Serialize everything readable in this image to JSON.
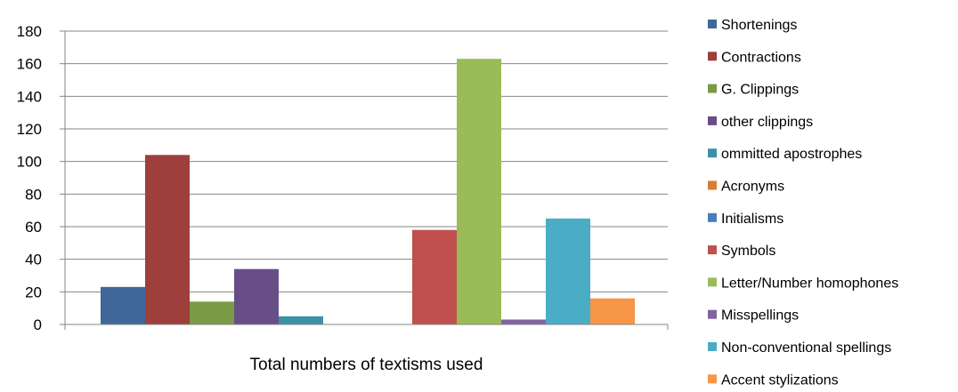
{
  "chart_data": {
    "type": "bar",
    "title": "",
    "xlabel": "Total numbers of textisms used",
    "ylabel": "",
    "ylim": [
      0,
      180
    ],
    "yticks": [
      0,
      20,
      40,
      60,
      80,
      100,
      120,
      140,
      160,
      180
    ],
    "grid": true,
    "legend_position": "right",
    "series": [
      {
        "name": "Shortenings",
        "value": 23,
        "color": "#3F679A"
      },
      {
        "name": "Contractions",
        "value": 104,
        "color": "#9E3F3C"
      },
      {
        "name": "G. Clippings",
        "value": 14,
        "color": "#7B9A45"
      },
      {
        "name": "other clippings",
        "value": 34,
        "color": "#674E87"
      },
      {
        "name": "ommitted apostrophes",
        "value": 5,
        "color": "#3A91A8"
      },
      {
        "name": "Acronyms",
        "value": 0,
        "color": "#D87D32"
      },
      {
        "name": "Initialisms",
        "value": 0,
        "color": "#4A7EBB"
      },
      {
        "name": "Symbols",
        "value": 58,
        "color": "#C0504D"
      },
      {
        "name": "Letter/Number homophones",
        "value": 163,
        "color": "#9BBB59"
      },
      {
        "name": "Misspellings",
        "value": 3,
        "color": "#8064A2"
      },
      {
        "name": "Non-conventional spellings",
        "value": 65,
        "color": "#4BACC6"
      },
      {
        "name": "Accent stylizations",
        "value": 16,
        "color": "#F79646"
      }
    ]
  }
}
